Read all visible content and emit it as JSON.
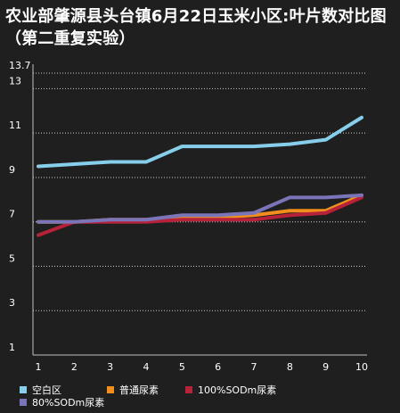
{
  "title": "农业部肇源县头台镇6月22日玉米小区:叶片数对比图（第二重复实验）",
  "colors": {
    "background": "#1f1f1f",
    "grid": "#cfcfcf",
    "axis_text": "#ffffff"
  },
  "chart_data": {
    "type": "line",
    "title": "农业部肇源县头台镇6月22日玉米小区:叶片数对比图（第二重复实验）",
    "xlabel": "",
    "ylabel": "",
    "x": [
      1,
      2,
      3,
      4,
      5,
      6,
      7,
      8,
      9,
      10
    ],
    "ylim": [
      1,
      13.7
    ],
    "yticks": [
      1,
      3,
      5,
      7,
      9,
      11,
      13,
      13.7
    ],
    "grid": true,
    "legend": "bottom",
    "series": [
      {
        "name": "空白区",
        "color": "#87ceeb",
        "values": [
          9.5,
          9.6,
          9.7,
          9.7,
          10.4,
          10.4,
          10.4,
          10.5,
          10.7,
          11.7
        ]
      },
      {
        "name": "普通尿素",
        "color": "#f28e1c",
        "values": [
          7.0,
          7.0,
          7.1,
          7.1,
          7.2,
          7.2,
          7.3,
          7.5,
          7.5,
          8.2
        ]
      },
      {
        "name": "100%SODm尿素",
        "color": "#b5223a",
        "values": [
          6.4,
          7.0,
          7.0,
          7.0,
          7.1,
          7.1,
          7.1,
          7.3,
          7.4,
          8.1
        ]
      },
      {
        "name": "80%SODm尿素",
        "color": "#7a74b8",
        "values": [
          7.0,
          7.0,
          7.1,
          7.1,
          7.3,
          7.3,
          7.4,
          8.1,
          8.1,
          8.2
        ]
      }
    ]
  }
}
